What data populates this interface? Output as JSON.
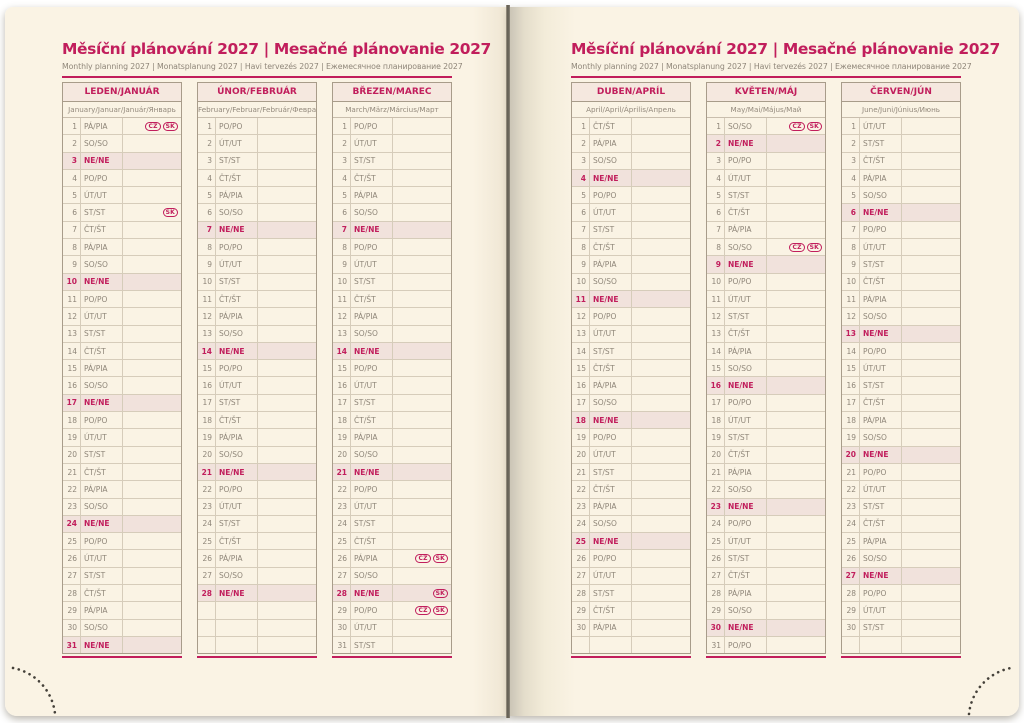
{
  "colors": {
    "accent": "#c11e5c",
    "paper": "#faf3e4",
    "sunday_bg": "#f1e2dc",
    "day_text": "#8f8679"
  },
  "header": {
    "title": "Měsíční plánování 2027 | Mesačné plánovanie 2027",
    "subtitle": "Monthly planning 2027 | Monatsplanung 2027 | Havi tervezés 2027 | Ежемесячное планирование 2027"
  },
  "months": [
    {
      "name": "LEDEN/JANUÁR",
      "subtitle": "January/Januar/Január/Январь",
      "days": [
        "PÁ/PIA",
        "SO/SO",
        "NE/NE",
        "PO/PO",
        "ÚT/UT",
        "ST/ST",
        "ČT/ŠT",
        "PÁ/PIA",
        "SO/SO",
        "NE/NE",
        "PO/PO",
        "ÚT/UT",
        "ST/ST",
        "ČT/ŠT",
        "PÁ/PIA",
        "SO/SO",
        "NE/NE",
        "PO/PO",
        "ÚT/UT",
        "ST/ST",
        "ČT/ŠT",
        "PÁ/PIA",
        "SO/SO",
        "NE/NE",
        "PO/PO",
        "ÚT/UT",
        "ST/ST",
        "ČT/ŠT",
        "PÁ/PIA",
        "SO/SO",
        "NE/NE"
      ],
      "badges": {
        "1": [
          "CZ",
          "SK"
        ],
        "6": [
          "SK"
        ]
      }
    },
    {
      "name": "ÚNOR/FEBRUÁR",
      "subtitle": "February/Februar/Február/Февраль",
      "days": [
        "PO/PO",
        "ÚT/UT",
        "ST/ST",
        "ČT/ŠT",
        "PÁ/PIA",
        "SO/SO",
        "NE/NE",
        "PO/PO",
        "ÚT/UT",
        "ST/ST",
        "ČT/ŠT",
        "PÁ/PIA",
        "SO/SO",
        "NE/NE",
        "PO/PO",
        "ÚT/UT",
        "ST/ST",
        "ČT/ŠT",
        "PÁ/PIA",
        "SO/SO",
        "NE/NE",
        "PO/PO",
        "ÚT/UT",
        "ST/ST",
        "ČT/ŠT",
        "PÁ/PIA",
        "SO/SO",
        "NE/NE"
      ],
      "badges": {}
    },
    {
      "name": "BŘEZEN/MAREC",
      "subtitle": "March/März/Március/Март",
      "days": [
        "PO/PO",
        "ÚT/UT",
        "ST/ST",
        "ČT/ŠT",
        "PÁ/PIA",
        "SO/SO",
        "NE/NE",
        "PO/PO",
        "ÚT/UT",
        "ST/ST",
        "ČT/ŠT",
        "PÁ/PIA",
        "SO/SO",
        "NE/NE",
        "PO/PO",
        "ÚT/UT",
        "ST/ST",
        "ČT/ŠT",
        "PÁ/PIA",
        "SO/SO",
        "NE/NE",
        "PO/PO",
        "ÚT/UT",
        "ST/ST",
        "ČT/ŠT",
        "PÁ/PIA",
        "SO/SO",
        "NE/NE",
        "PO/PO",
        "ÚT/UT",
        "ST/ST"
      ],
      "badges": {
        "26": [
          "CZ",
          "SK"
        ],
        "28": [
          "SK"
        ],
        "29": [
          "CZ",
          "SK"
        ]
      }
    },
    {
      "name": "DUBEN/APRÍL",
      "subtitle": "April/April/Április/Апрель",
      "days": [
        "ČT/ŠT",
        "PÁ/PIA",
        "SO/SO",
        "NE/NE",
        "PO/PO",
        "ÚT/UT",
        "ST/ST",
        "ČT/ŠT",
        "PÁ/PIA",
        "SO/SO",
        "NE/NE",
        "PO/PO",
        "ÚT/UT",
        "ST/ST",
        "ČT/ŠT",
        "PÁ/PIA",
        "SO/SO",
        "NE/NE",
        "PO/PO",
        "ÚT/UT",
        "ST/ST",
        "ČT/ŠT",
        "PÁ/PIA",
        "SO/SO",
        "NE/NE",
        "PO/PO",
        "ÚT/UT",
        "ST/ST",
        "ČT/ŠT",
        "PÁ/PIA"
      ],
      "badges": {}
    },
    {
      "name": "KVĚTEN/MÁJ",
      "subtitle": "May/Mai/Május/Май",
      "days": [
        "SO/SO",
        "NE/NE",
        "PO/PO",
        "ÚT/UT",
        "ST/ST",
        "ČT/ŠT",
        "PÁ/PIA",
        "SO/SO",
        "NE/NE",
        "PO/PO",
        "ÚT/UT",
        "ST/ST",
        "ČT/ŠT",
        "PÁ/PIA",
        "SO/SO",
        "NE/NE",
        "PO/PO",
        "ÚT/UT",
        "ST/ST",
        "ČT/ŠT",
        "PÁ/PIA",
        "SO/SO",
        "NE/NE",
        "PO/PO",
        "ÚT/UT",
        "ST/ST",
        "ČT/ŠT",
        "PÁ/PIA",
        "SO/SO",
        "NE/NE",
        "PO/PO"
      ],
      "badges": {
        "1": [
          "CZ",
          "SK"
        ],
        "8": [
          "CZ",
          "SK"
        ]
      }
    },
    {
      "name": "ČERVEN/JÚN",
      "subtitle": "June/Juni/Június/Июнь",
      "days": [
        "ÚT/UT",
        "ST/ST",
        "ČT/ŠT",
        "PÁ/PIA",
        "SO/SO",
        "NE/NE",
        "PO/PO",
        "ÚT/UT",
        "ST/ST",
        "ČT/ŠT",
        "PÁ/PIA",
        "SO/SO",
        "NE/NE",
        "PO/PO",
        "ÚT/UT",
        "ST/ST",
        "ČT/ŠT",
        "PÁ/PIA",
        "SO/SO",
        "NE/NE",
        "PO/PO",
        "ÚT/UT",
        "ST/ST",
        "ČT/ŠT",
        "PÁ/PIA",
        "SO/SO",
        "NE/NE",
        "PO/PO",
        "ÚT/UT",
        "ST/ST"
      ],
      "badges": {}
    }
  ]
}
